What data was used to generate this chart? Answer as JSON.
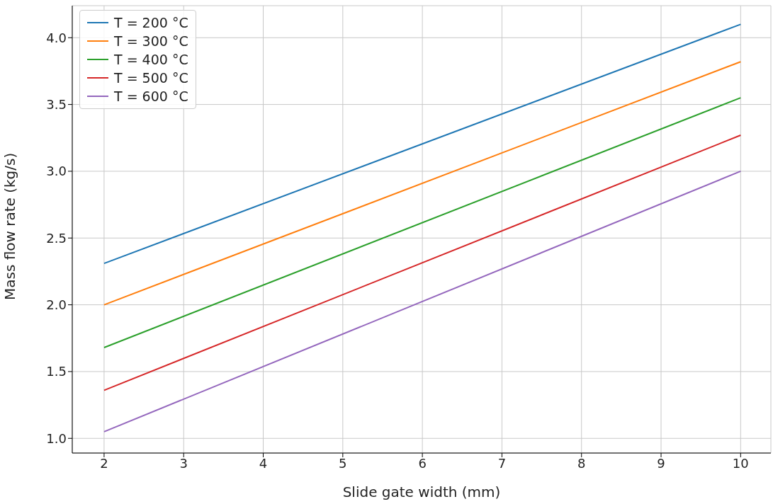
{
  "chart_data": {
    "type": "line",
    "xlabel": "Slide gate width (mm)",
    "ylabel": "Mass flow rate (kg/s)",
    "x": [
      2,
      10
    ],
    "series": [
      {
        "name": "T = 200 °C",
        "color": "#1f77b4",
        "values": [
          2.31,
          4.1
        ]
      },
      {
        "name": "T = 300 °C",
        "color": "#ff7f0e",
        "values": [
          2.0,
          3.82
        ]
      },
      {
        "name": "T = 400 °C",
        "color": "#2ca02c",
        "values": [
          1.68,
          3.55
        ]
      },
      {
        "name": "T = 500 °C",
        "color": "#d62728",
        "values": [
          1.36,
          3.27
        ]
      },
      {
        "name": "T = 600 °C",
        "color": "#9467bd",
        "values": [
          1.05,
          3.0
        ]
      }
    ],
    "xlim": [
      1.6,
      10.38
    ],
    "xticks": [
      2,
      3,
      4,
      5,
      6,
      7,
      8,
      9,
      10
    ],
    "ylim": [
      0.89,
      4.24
    ],
    "yticks": [
      {
        "value": 1,
        "label": "1.0"
      },
      1.5,
      {
        "value": 2,
        "label": "2.0"
      },
      2.5,
      {
        "value": 3,
        "label": "3.0"
      },
      3.5,
      {
        "value": 4,
        "label": "4.0"
      }
    ],
    "grid": true,
    "legend": "top left",
    "marker": "none",
    "line_style": "solid"
  }
}
